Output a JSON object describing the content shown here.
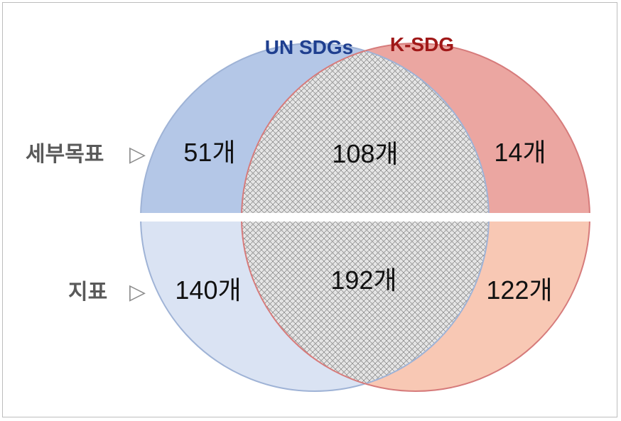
{
  "venn": {
    "sets": [
      {
        "name": "UN SDGs",
        "color": "#1f3f8f",
        "fill_top": "#b4c7e7",
        "fill_bottom": "#dae3f3"
      },
      {
        "name": "K-SDG",
        "color": "#a01818",
        "fill_top": "#eba6a1",
        "fill_bottom": "#f8c8b4"
      }
    ],
    "rows": [
      {
        "label": "세부목표",
        "arrow": "▷",
        "left_only": "51개",
        "both": "108개",
        "right_only": "14개"
      },
      {
        "label": "지표",
        "arrow": "▷",
        "left_only": "140개",
        "both": "192개",
        "right_only": "122개"
      }
    ],
    "overlap_pattern": "crosshatch-gray"
  }
}
